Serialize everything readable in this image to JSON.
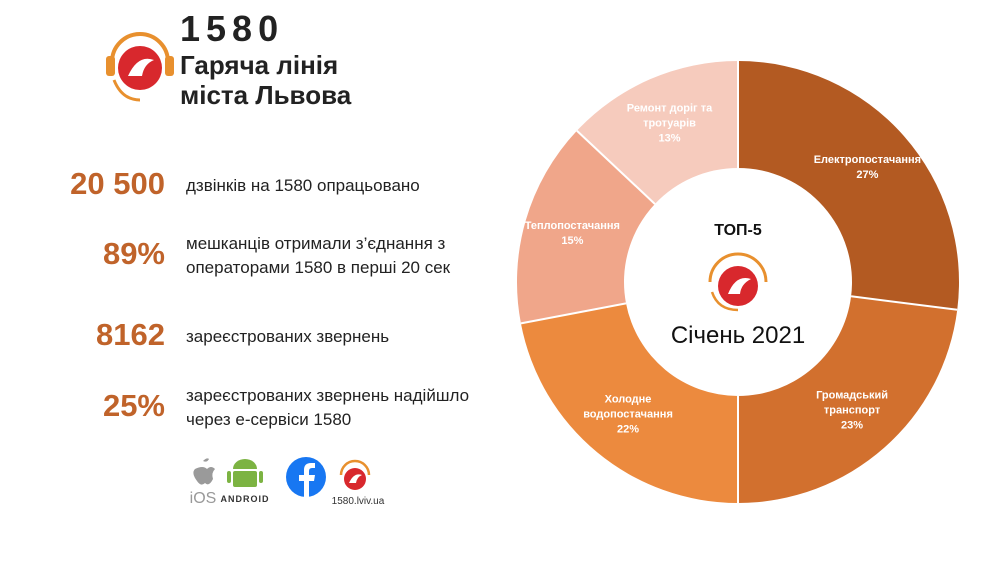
{
  "brand": {
    "number": "1580",
    "name": "Гаряча лінія міста Львова"
  },
  "stats": [
    {
      "value": "20 500",
      "text": "дзвінків на 1580 опрацьовано"
    },
    {
      "value": "89%",
      "text": "мешканців отримали з’єднання з операторами 1580 в перші 20 сек"
    },
    {
      "value": "8162",
      "text": "зареєстрованих звернень"
    },
    {
      "value": "25%",
      "text": "зареєстрованих звернень надійшло через е-сервіси 1580"
    }
  ],
  "apps": {
    "ios": "iOS",
    "android": "ANDROID",
    "site": "1580.lviv.ua"
  },
  "chart_data": {
    "type": "donut",
    "title": "ТОП-5",
    "subtitle": "Січень 2021",
    "categories": [
      "Електропостачання",
      "Громадський транспорт",
      "Холодне водопостачання",
      "Теплопостачання",
      "Ремонт доріг та тротуарів"
    ],
    "values": [
      27,
      23,
      22,
      15,
      13
    ],
    "value_labels": [
      "27%",
      "23%",
      "22%",
      "15%",
      "13%"
    ],
    "colors": [
      "#b35a22",
      "#d2702e",
      "#ec8a3e",
      "#f0a68a",
      "#f6cbbd"
    ]
  }
}
